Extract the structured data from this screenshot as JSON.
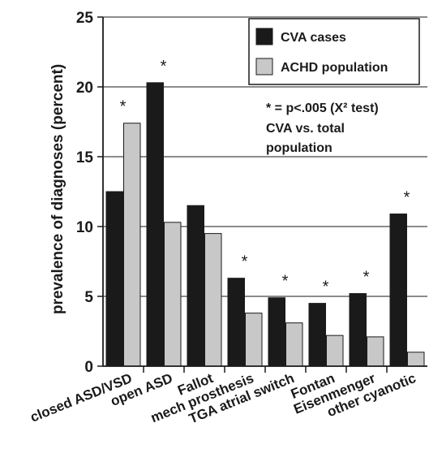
{
  "chart_data": {
    "type": "bar",
    "ylabel": "prevalence of diagnoses (percent)",
    "ylim": [
      0,
      25
    ],
    "yticks": [
      0,
      5,
      10,
      15,
      20,
      25
    ],
    "grid": true,
    "categories": [
      "closed ASD/VSD",
      "open ASD",
      "Fallot",
      "mech prosthesis",
      "TGA atrial switch",
      "Fontan",
      "Eisenmenger",
      "other cyanotic"
    ],
    "series": [
      {
        "name": "CVA cases",
        "color": "#1a1a1a",
        "values": [
          12.5,
          20.3,
          11.5,
          6.3,
          4.9,
          4.5,
          5.2,
          10.9
        ]
      },
      {
        "name": "ACHD population",
        "color": "#c8c8c8",
        "values": [
          17.4,
          10.3,
          9.5,
          3.8,
          3.1,
          2.2,
          2.1,
          1.0
        ]
      }
    ],
    "significance_marks": [
      "*",
      "*",
      "",
      "*",
      "*",
      "*",
      "*",
      "*"
    ],
    "legend_position": "top-right",
    "annotation": [
      "* = p<.005 (X² test)",
      "CVA vs. total",
      "population"
    ]
  }
}
